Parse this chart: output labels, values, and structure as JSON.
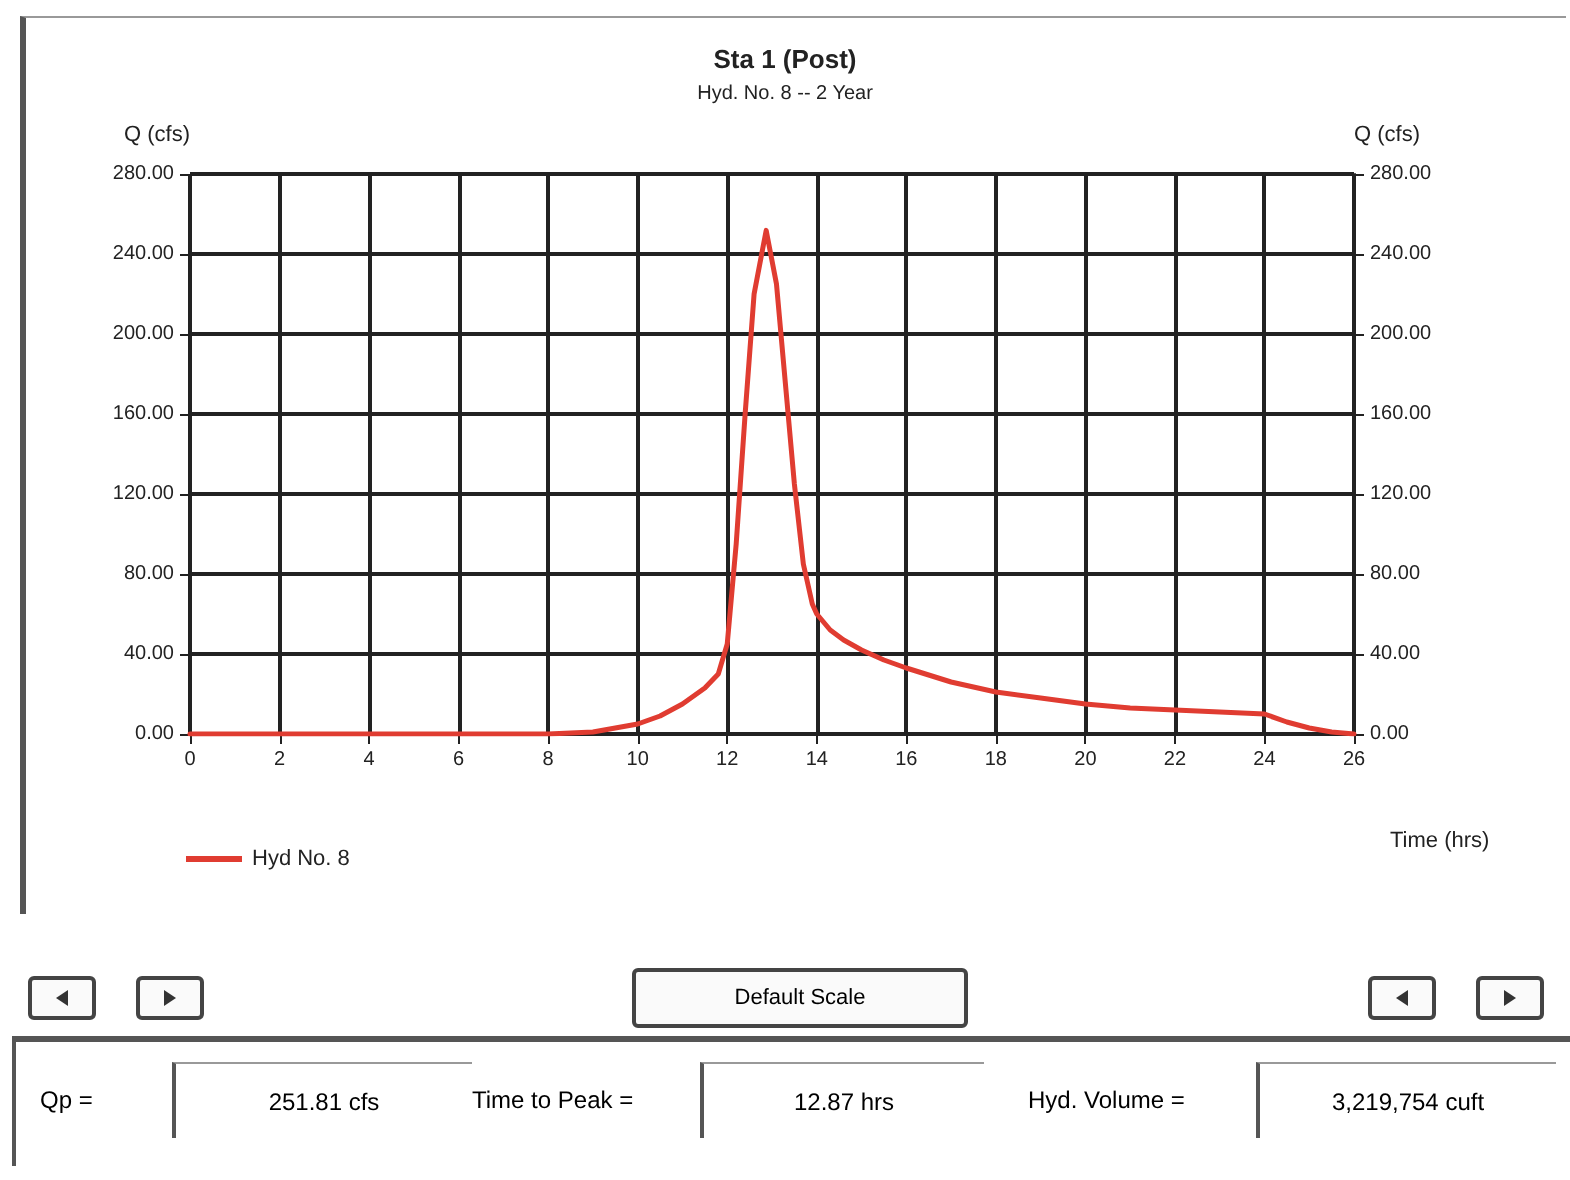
{
  "chart_data": {
    "type": "line",
    "title": "Sta 1 (Post)",
    "subtitle": "Hyd. No. 8 -- 2 Year",
    "xlabel": "Time (hrs)",
    "ylabel": "Q (cfs)",
    "y2label": "Q (cfs)",
    "x": [
      0,
      2,
      4,
      6,
      8,
      8.5,
      9,
      9.5,
      10,
      10.5,
      11,
      11.5,
      11.8,
      12,
      12.2,
      12.4,
      12.6,
      12.87,
      13.1,
      13.3,
      13.5,
      13.7,
      13.9,
      14,
      14.3,
      14.6,
      15,
      15.5,
      16,
      17,
      18,
      19,
      20,
      21,
      22,
      23,
      24,
      24.5,
      25,
      25.5,
      26
    ],
    "series": [
      {
        "name": "Hyd No. 8",
        "color": "#e03c31",
        "values": [
          0,
          0,
          0,
          0,
          0,
          0.5,
          1,
          3,
          5,
          9,
          15,
          23,
          30,
          45,
          95,
          160,
          220,
          251.81,
          225,
          175,
          125,
          85,
          65,
          60,
          52,
          47,
          42,
          37,
          33,
          26,
          21,
          18,
          15,
          13,
          12,
          11,
          10,
          6,
          3,
          1,
          0
        ]
      }
    ],
    "xlim": [
      0,
      26
    ],
    "xticks": [
      0,
      2,
      4,
      6,
      8,
      10,
      12,
      14,
      16,
      18,
      20,
      22,
      24,
      26
    ],
    "ylim": [
      0,
      280
    ],
    "yticks": [
      {
        "value": 0,
        "label": "0.00"
      },
      {
        "value": 40,
        "label": "40.00"
      },
      {
        "value": 80,
        "label": "80.00"
      },
      {
        "value": 120,
        "label": "120.00"
      },
      {
        "value": 160,
        "label": "160.00"
      },
      {
        "value": 200,
        "label": "200.00"
      },
      {
        "value": 240,
        "label": "240.00"
      },
      {
        "value": 280,
        "label": "280.00"
      }
    ],
    "y2lim": [
      0,
      280
    ],
    "y2ticks": [
      {
        "value": 0,
        "label": "0.00"
      },
      {
        "value": 40,
        "label": "40.00"
      },
      {
        "value": 80,
        "label": "80.00"
      },
      {
        "value": 120,
        "label": "120.00"
      },
      {
        "value": 160,
        "label": "160.00"
      },
      {
        "value": 200,
        "label": "200.00"
      },
      {
        "value": 240,
        "label": "240.00"
      },
      {
        "value": 280,
        "label": "280.00"
      }
    ],
    "grid": true,
    "legend": "bottom left",
    "marker": "none",
    "line_style": "solid",
    "annotations": [
      "Default Scale",
      "Qp =",
      "251.81 cfs",
      "Time to Peak =",
      "12.87 hrs",
      "Hyd. Volume =",
      "3,219,754 cuft"
    ]
  }
}
